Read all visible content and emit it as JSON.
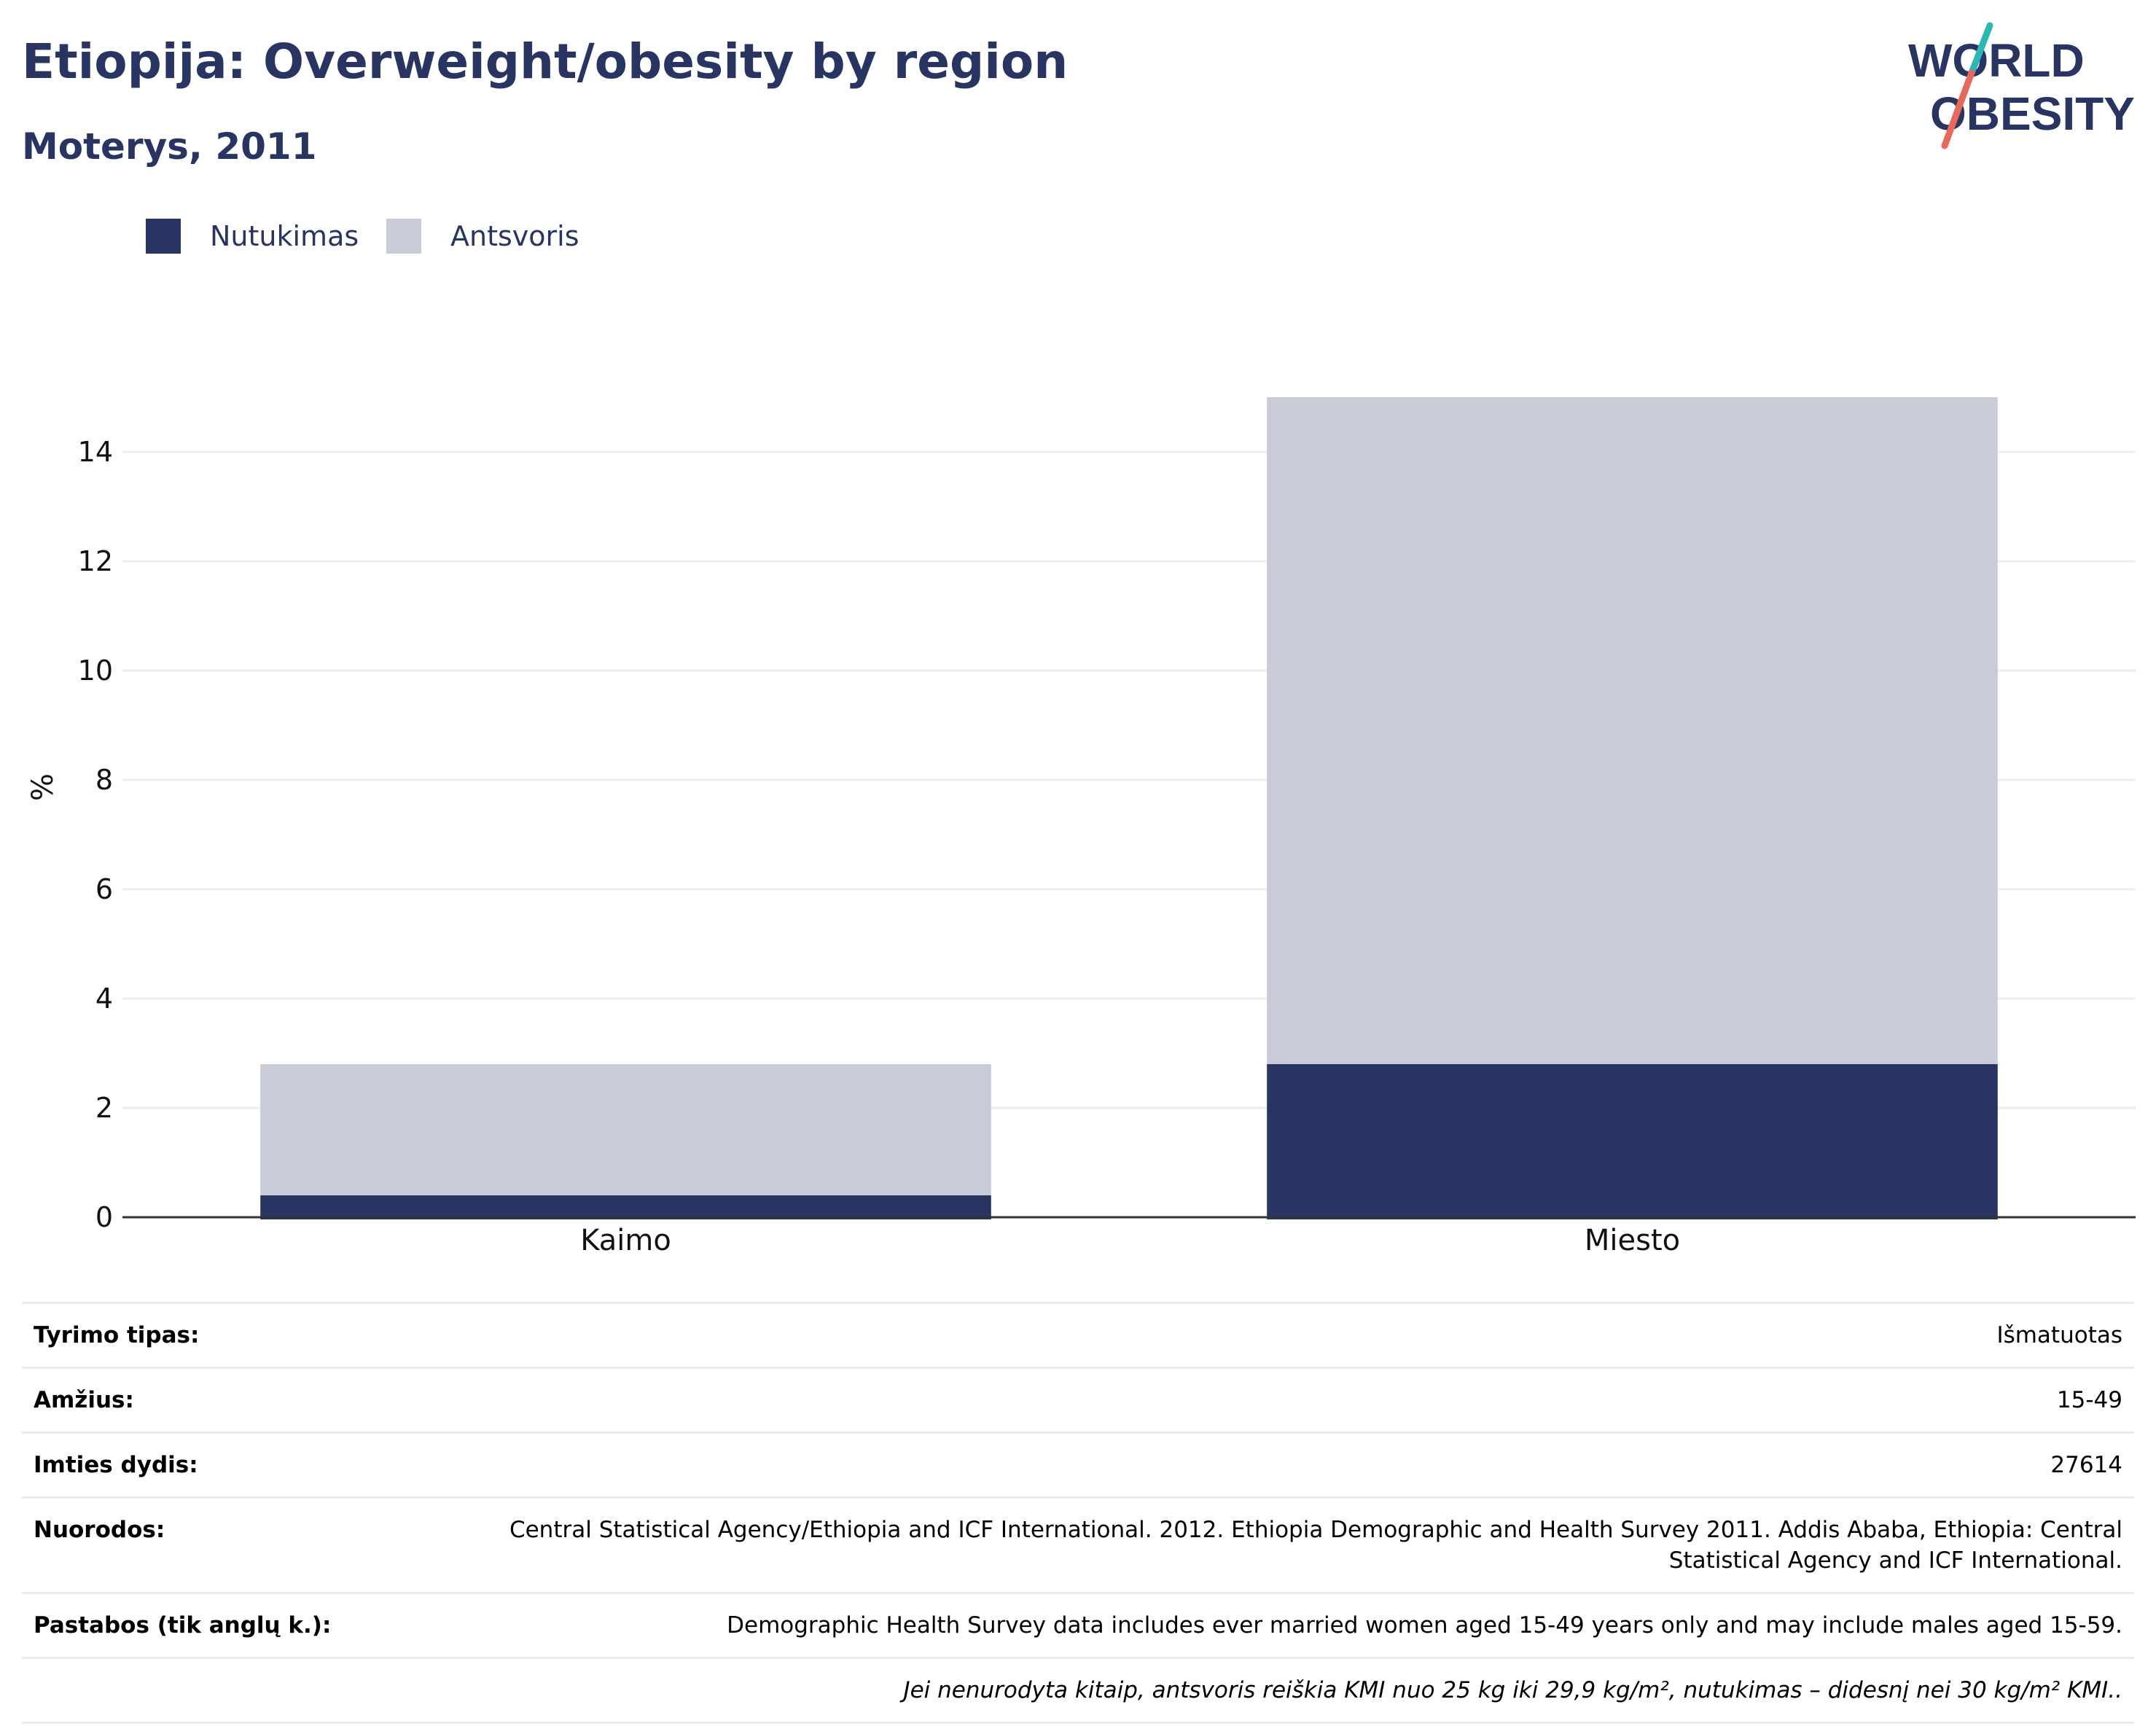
{
  "header": {
    "title": "Etiopija: Overweight/obesity by region",
    "subtitle": "Moterys, 2011"
  },
  "logo": {
    "line1": "WORLD",
    "line2": "OBESITY",
    "colors": {
      "text": "#283562",
      "slash_top": "#2bb7b3",
      "slash_bottom": "#e8685a"
    }
  },
  "colors": {
    "obesity": "#283562",
    "overweight": "#c9ccd7",
    "grid": "#ebedf2",
    "axis": "#333333"
  },
  "chart_data": {
    "type": "bar",
    "stacked": true,
    "categories": [
      "Kaimo",
      "Miesto"
    ],
    "series": [
      {
        "name": "Nutukimas",
        "values": [
          0.4,
          2.8
        ],
        "color": "#283562"
      },
      {
        "name": "Antsvoris",
        "values": [
          2.4,
          12.2
        ],
        "color": "#c9ccd7"
      }
    ],
    "title": "",
    "xlabel": "",
    "ylabel": "%",
    "ylim": [
      0,
      15.2
    ],
    "yticks": [
      0,
      2,
      4,
      6,
      8,
      10,
      12,
      14
    ],
    "grid": true,
    "legend_position": "top-left"
  },
  "info": {
    "rows": [
      {
        "label": "Tyrimo tipas:",
        "value": "Išmatuotas"
      },
      {
        "label": "Amžius:",
        "value": "15-49"
      },
      {
        "label": "Imties dydis:",
        "value": "27614"
      },
      {
        "label": "Nuorodos:",
        "value": "Central Statistical Agency/Ethiopia and ICF International. 2012. Ethiopia Demographic and Health Survey 2011. Addis Ababa, Ethiopia: Central Statistical Agency and ICF International."
      },
      {
        "label": "Pastabos (tik anglų k.):",
        "value": "Demographic Health Survey data includes ever married women aged 15-49 years only and may include males aged 15-59."
      }
    ],
    "footnote": "Jei nenurodyta kitaip, antsvoris reiškia KMI nuo 25 kg iki 29,9 kg/m², nutukimas – didesnį nei 30 kg/m² KMI.."
  }
}
